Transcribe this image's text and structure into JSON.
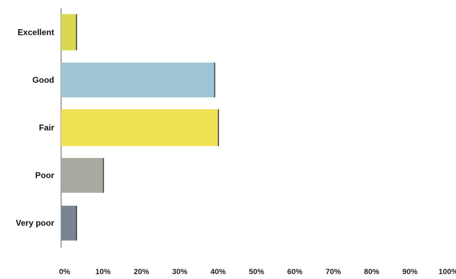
{
  "chart_data": {
    "type": "bar",
    "orientation": "horizontal",
    "categories": [
      "Excellent",
      "Good",
      "Fair",
      "Poor",
      "Very poor"
    ],
    "values": [
      4,
      40,
      41,
      11,
      4
    ],
    "bar_colors": [
      "#d8d94e",
      "#9fc4d4",
      "#f0e155",
      "#a9a9a2",
      "#7a8591"
    ],
    "xlim": [
      0,
      100
    ],
    "x_ticks": [
      "0%",
      "10%",
      "20%",
      "30%",
      "40%",
      "50%",
      "60%",
      "70%",
      "80%",
      "90%",
      "100%"
    ],
    "grid": false,
    "legend": "none"
  }
}
